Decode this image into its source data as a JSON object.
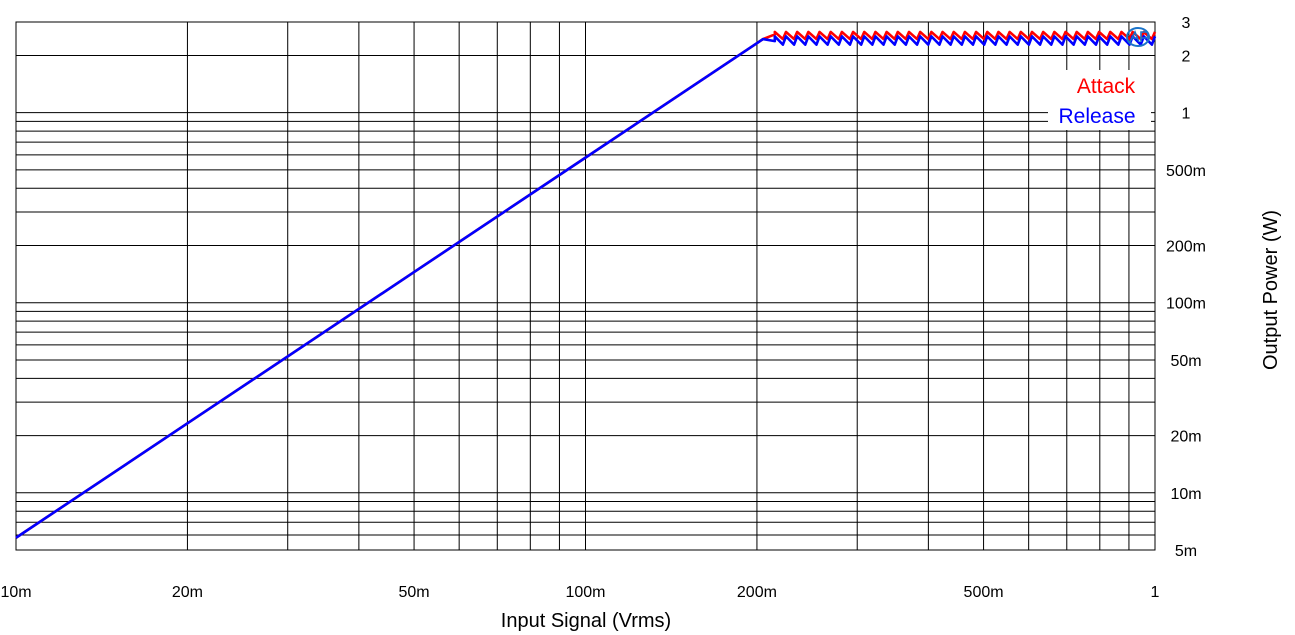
{
  "chart_data": {
    "type": "line",
    "title": "",
    "xlabel": "Input Signal (Vrms)",
    "ylabel": "Output Power (W)",
    "x_scale": "log",
    "y_scale": "log",
    "xlim": [
      0.01,
      1
    ],
    "ylim": [
      0.005,
      3
    ],
    "grid": true,
    "legend_placement": "top-right",
    "x_ticks": [
      {
        "value": 0.01,
        "label": "10m"
      },
      {
        "value": 0.02,
        "label": "20m"
      },
      {
        "value": 0.05,
        "label": "50m"
      },
      {
        "value": 0.1,
        "label": "100m"
      },
      {
        "value": 0.2,
        "label": "200m"
      },
      {
        "value": 0.5,
        "label": "500m"
      },
      {
        "value": 1,
        "label": "1"
      }
    ],
    "y_ticks": [
      {
        "value": 3,
        "label": "3"
      },
      {
        "value": 2,
        "label": "2"
      },
      {
        "value": 1,
        "label": "1"
      },
      {
        "value": 0.5,
        "label": "500m"
      },
      {
        "value": 0.2,
        "label": "200m"
      },
      {
        "value": 0.1,
        "label": "100m"
      },
      {
        "value": 0.05,
        "label": "50m"
      },
      {
        "value": 0.02,
        "label": "20m"
      },
      {
        "value": 0.01,
        "label": "10m"
      },
      {
        "value": 0.005,
        "label": "5m"
      }
    ],
    "series": [
      {
        "name": "Attack",
        "color": "#ff0000",
        "x": [
          0.01,
          0.02,
          0.05,
          0.1,
          0.2,
          0.205,
          0.215
        ],
        "y": [
          0.0058,
          0.0232,
          0.145,
          0.58,
          2.32,
          2.44,
          2.58
        ],
        "limit_region": {
          "x_start": 0.215,
          "x_end": 1,
          "y_low": 2.44,
          "y_high": 2.66,
          "steps": 34
        }
      },
      {
        "name": "Release",
        "color": "#0000ff",
        "x": [
          0.01,
          0.02,
          0.05,
          0.1,
          0.2,
          0.205,
          0.215
        ],
        "y": [
          0.0058,
          0.0232,
          0.145,
          0.58,
          2.32,
          2.44,
          2.38
        ],
        "limit_region": {
          "x_start": 0.215,
          "x_end": 1,
          "y_low": 2.28,
          "y_high": 2.52,
          "steps": 34
        }
      }
    ]
  },
  "colors": {
    "grid": "#000000",
    "attack": "#ff0000",
    "release": "#0000ff",
    "logo": "#1a73c9"
  },
  "logo_icon": "ap-logo-icon"
}
